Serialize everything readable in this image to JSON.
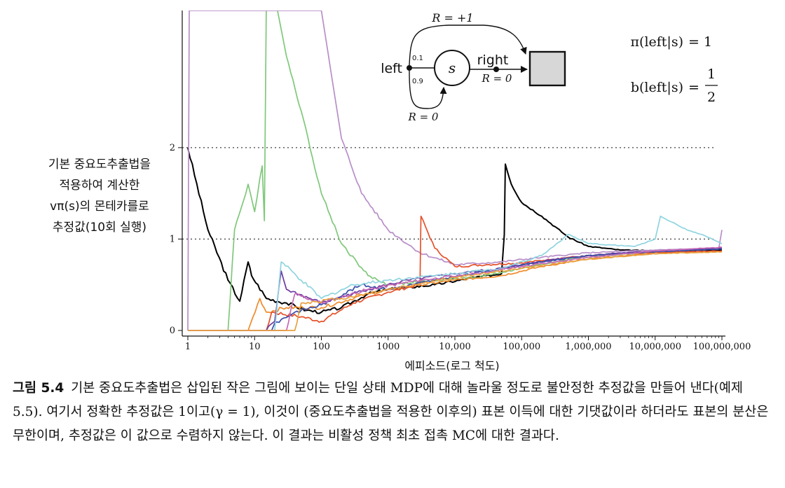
{
  "chart_data": {
    "type": "line",
    "xscale": "log",
    "xlim": [
      1,
      100000000
    ],
    "ylim": [
      0,
      3.5
    ],
    "xlabel": "에피소드(로그 척도)",
    "ylabel_lines": [
      "기본 중요도추출법을",
      "적용하여 계산한",
      "vπ(s)의 몬테카를로",
      "추정값(10회 실행)"
    ],
    "x_ticks": [
      {
        "value": 1,
        "label": "1"
      },
      {
        "value": 10,
        "label": "10"
      },
      {
        "value": 100,
        "label": "100"
      },
      {
        "value": 1000,
        "label": "1000"
      },
      {
        "value": 10000,
        "label": "10,000"
      },
      {
        "value": 100000,
        "label": "100,000"
      },
      {
        "value": 1000000,
        "label": "1,000,000"
      },
      {
        "value": 10000000,
        "label": "10,000,000"
      },
      {
        "value": 100000000,
        "label": "100,000,000"
      }
    ],
    "y_ticks": [
      {
        "value": 0,
        "label": "0"
      },
      {
        "value": 1,
        "label": "1"
      },
      {
        "value": 2,
        "label": "2"
      }
    ],
    "reference_lines": [
      1,
      2
    ],
    "series": [
      {
        "color": "#000000",
        "points": [
          [
            1,
            2.0
          ],
          [
            2,
            1.1
          ],
          [
            4,
            0.55
          ],
          [
            6,
            0.32
          ],
          [
            8,
            0.75
          ],
          [
            9,
            0.6
          ],
          [
            15,
            0.35
          ],
          [
            30,
            0.3
          ],
          [
            60,
            0.22
          ],
          [
            100,
            0.2
          ],
          [
            200,
            0.25
          ],
          [
            500,
            0.4
          ],
          [
            1000,
            0.45
          ],
          [
            5000,
            0.5
          ],
          [
            20000,
            0.58
          ],
          [
            50000,
            0.62
          ],
          [
            55000,
            1.05
          ],
          [
            57000,
            1.82
          ],
          [
            70000,
            1.6
          ],
          [
            100000,
            1.4
          ],
          [
            200000,
            1.25
          ],
          [
            500000,
            1.02
          ],
          [
            1000000,
            0.92
          ],
          [
            3000000,
            0.88
          ],
          [
            10000000,
            0.87
          ],
          [
            30000000,
            0.87
          ],
          [
            100000000,
            0.88
          ]
        ]
      },
      {
        "color": "#7fc87a",
        "points": [
          [
            1,
            0
          ],
          [
            4,
            0
          ],
          [
            5,
            1.1
          ],
          [
            8,
            1.6
          ],
          [
            10,
            1.3
          ],
          [
            13,
            1.8
          ],
          [
            14,
            1.2
          ],
          [
            15,
            3.6
          ],
          [
            22,
            3.5
          ],
          [
            30,
            3.0
          ],
          [
            50,
            2.4
          ],
          [
            100,
            1.5
          ],
          [
            200,
            0.95
          ],
          [
            500,
            0.6
          ],
          [
            1000,
            0.5
          ],
          [
            5000,
            0.55
          ],
          [
            20000,
            0.58
          ],
          [
            100000,
            0.68
          ],
          [
            500000,
            0.78
          ],
          [
            2000000,
            0.82
          ],
          [
            10000000,
            0.86
          ],
          [
            100000000,
            0.9
          ]
        ]
      },
      {
        "color": "#b88ec8",
        "points": [
          [
            1,
            0
          ],
          [
            1.05,
            3.5
          ],
          [
            100,
            3.5
          ],
          [
            200,
            2.1
          ],
          [
            400,
            1.5
          ],
          [
            1000,
            1.1
          ],
          [
            3000,
            0.85
          ],
          [
            10000,
            0.72
          ],
          [
            50000,
            0.75
          ],
          [
            200000,
            0.8
          ],
          [
            1000000,
            0.85
          ],
          [
            10000000,
            0.88
          ],
          [
            90000000,
            0.9
          ],
          [
            100000000,
            1.1
          ]
        ]
      },
      {
        "color": "#f08a2a",
        "points": [
          [
            1,
            0
          ],
          [
            8,
            0
          ],
          [
            12,
            0.35
          ],
          [
            15,
            0.2
          ],
          [
            30,
            0.25
          ],
          [
            100,
            0.25
          ],
          [
            500,
            0.4
          ],
          [
            3000,
            0.5
          ],
          [
            10000,
            0.55
          ],
          [
            50000,
            0.6
          ],
          [
            200000,
            0.7
          ],
          [
            1000000,
            0.78
          ],
          [
            5000000,
            0.83
          ],
          [
            20000000,
            0.85
          ],
          [
            100000000,
            0.86
          ]
        ]
      },
      {
        "color": "#e5512a",
        "points": [
          [
            1,
            0
          ],
          [
            15,
            0
          ],
          [
            18,
            0.2
          ],
          [
            50,
            0.15
          ],
          [
            100,
            0.1
          ],
          [
            300,
            0.3
          ],
          [
            1000,
            0.42
          ],
          [
            3000,
            0.5
          ],
          [
            3100,
            1.25
          ],
          [
            5000,
            0.9
          ],
          [
            10000,
            0.7
          ],
          [
            30000,
            0.72
          ],
          [
            100000,
            0.74
          ],
          [
            500000,
            0.8
          ],
          [
            3000000,
            0.84
          ],
          [
            20000000,
            0.86
          ],
          [
            100000000,
            0.87
          ]
        ]
      },
      {
        "color": "#6d3aa0",
        "points": [
          [
            1,
            0
          ],
          [
            15,
            0
          ],
          [
            20,
            0.1
          ],
          [
            25,
            0.65
          ],
          [
            30,
            0.45
          ],
          [
            100,
            0.3
          ],
          [
            500,
            0.45
          ],
          [
            2000,
            0.55
          ],
          [
            10000,
            0.62
          ],
          [
            50000,
            0.68
          ],
          [
            300000,
            0.78
          ],
          [
            2000000,
            0.84
          ],
          [
            20000000,
            0.88
          ],
          [
            100000000,
            0.9
          ]
        ]
      },
      {
        "color": "#3a4fa8",
        "points": [
          [
            1,
            0
          ],
          [
            18,
            0
          ],
          [
            20,
            0.08
          ],
          [
            40,
            0.2
          ],
          [
            100,
            0.28
          ],
          [
            400,
            0.5
          ],
          [
            1000,
            0.45
          ],
          [
            5000,
            0.55
          ],
          [
            30000,
            0.65
          ],
          [
            200000,
            0.75
          ],
          [
            1000000,
            0.82
          ],
          [
            10000000,
            0.86
          ],
          [
            100000000,
            0.89
          ]
        ]
      },
      {
        "color": "#8fd4e0",
        "points": [
          [
            1,
            0
          ],
          [
            20,
            0
          ],
          [
            25,
            0.75
          ],
          [
            50,
            0.55
          ],
          [
            100,
            0.35
          ],
          [
            300,
            0.5
          ],
          [
            1000,
            0.55
          ],
          [
            5000,
            0.6
          ],
          [
            50000,
            0.68
          ],
          [
            200000,
            0.82
          ],
          [
            500000,
            1.05
          ],
          [
            1000000,
            0.95
          ],
          [
            5000000,
            0.92
          ],
          [
            10000000,
            1.0
          ],
          [
            12000000,
            1.25
          ],
          [
            30000000,
            1.1
          ],
          [
            50000000,
            1.05
          ],
          [
            100000000,
            0.95
          ]
        ]
      },
      {
        "color": "#c86ab8",
        "points": [
          [
            1,
            0
          ],
          [
            30,
            0
          ],
          [
            40,
            0.4
          ],
          [
            100,
            0.3
          ],
          [
            500,
            0.45
          ],
          [
            3000,
            0.55
          ],
          [
            20000,
            0.62
          ],
          [
            100000,
            0.7
          ],
          [
            1000000,
            0.8
          ],
          [
            10000000,
            0.87
          ],
          [
            100000000,
            0.91
          ]
        ]
      },
      {
        "color": "#e8a040",
        "points": [
          [
            1,
            0
          ],
          [
            40,
            0
          ],
          [
            50,
            0.3
          ],
          [
            200,
            0.35
          ],
          [
            1000,
            0.45
          ],
          [
            10000,
            0.58
          ],
          [
            100000,
            0.68
          ],
          [
            1000000,
            0.78
          ],
          [
            10000000,
            0.84
          ],
          [
            100000000,
            0.86
          ]
        ]
      }
    ]
  },
  "diagram": {
    "left": "left",
    "right": "right",
    "state": "s",
    "reward_top": "R = +1",
    "reward_right": "R = 0",
    "reward_loop": "R = 0",
    "prob_up": "0.1",
    "prob_down": "0.9"
  },
  "policies": {
    "pi_lhs": "π(left|s)",
    "pi_rhs": "= 1",
    "b_lhs": "b(left|s)",
    "b_eq": "=",
    "b_num": "1",
    "b_den": "2"
  },
  "caption": {
    "number": "그림 5.4",
    "text": "기본 중요도추출법은 삽입된 작은 그림에 보이는 단일 상태 MDP에 대해 놀라울 정도로 불안정한 추정값을 만들어 낸다(예제 5.5). 여기서 정확한 추정값은 1이고(γ = 1), 이것이 (중요도추출법을 적용한 이후의) 표본 이득에 대한 기댓값이라 하더라도 표본의 분산은 무한이며, 추정값은 이 값으로 수렴하지 않는다. 이 결과는 비활성 정책 최초 접촉 MC에 대한 결과다."
  }
}
